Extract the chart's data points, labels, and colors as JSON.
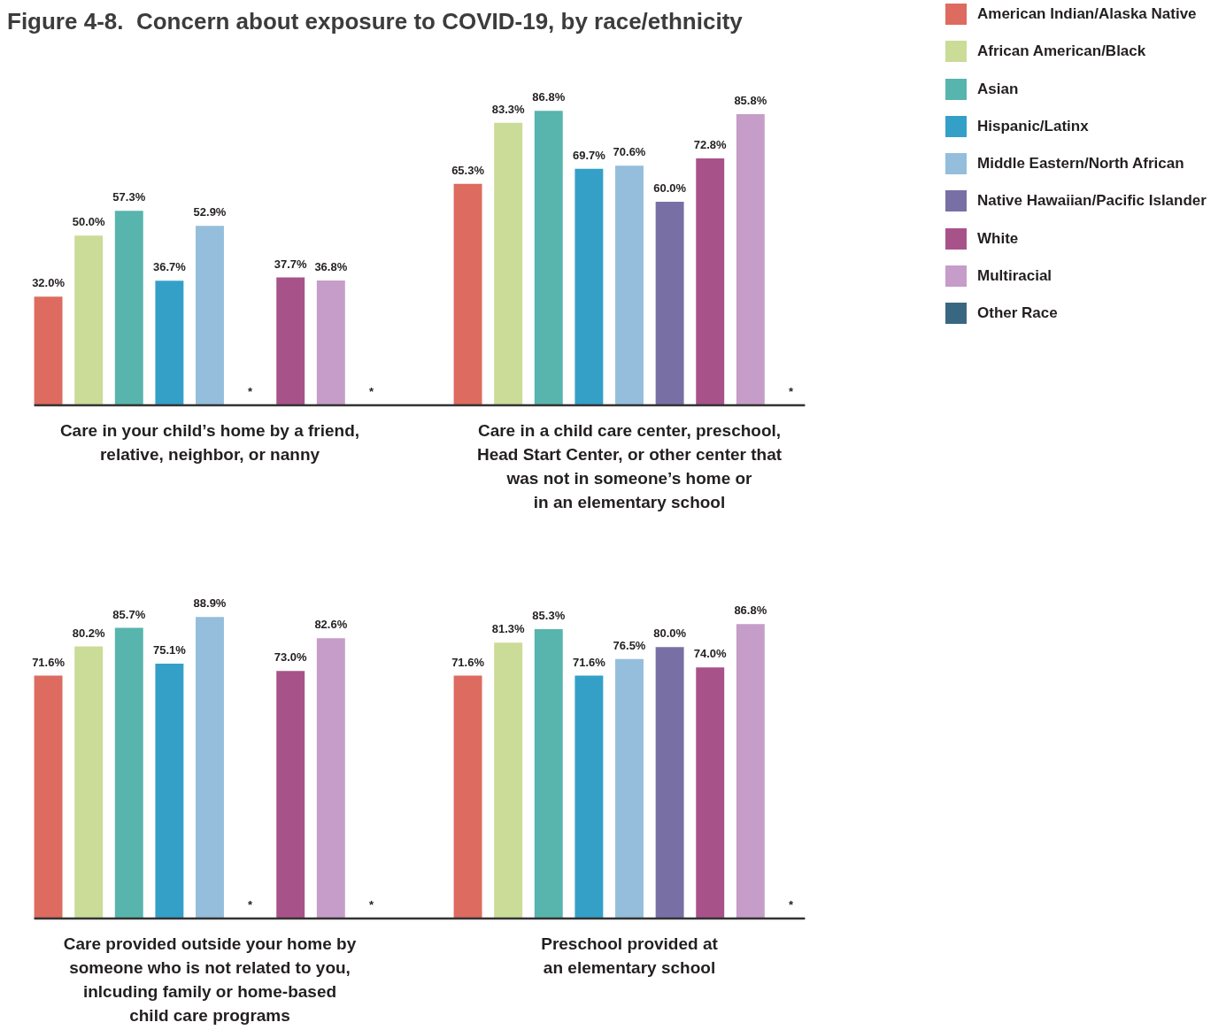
{
  "chart_data": [
    {
      "type": "bar",
      "title": "Figure 4-8.  Concern about exposure to COVID-19, by race/ethnicity",
      "legend": "top right",
      "categories": [
        "Care in your child’s home by a friend,\nrelative, neighbor, or nanny",
        "Care in a child care center, preschool,\nHead Start Center, or other center that\nwas not in someone’s home or\nin an elementary school"
      ],
      "series": [
        {
          "name": "American Indian/Alaska Native",
          "color": "#dd6b5f",
          "values": [
            32.0,
            65.3
          ],
          "value_labels": [
            "32.0%",
            "65.3%"
          ]
        },
        {
          "name": "African American/Black",
          "color": "#cbdb98",
          "values": [
            50.0,
            83.3
          ],
          "value_labels": [
            "50.0%",
            "83.3%"
          ]
        },
        {
          "name": "Asian",
          "color": "#57b5ad",
          "values": [
            57.3,
            86.8
          ],
          "value_labels": [
            "57.3%",
            "86.8%"
          ]
        },
        {
          "name": "Hispanic/Latinx",
          "color": "#34a0c8",
          "values": [
            36.7,
            69.7
          ],
          "value_labels": [
            "36.7%",
            "69.7%"
          ]
        },
        {
          "name": "Middle Eastern/North African",
          "color": "#94bedc",
          "values": [
            52.9,
            70.6
          ],
          "value_labels": [
            "52.9%",
            "70.6%"
          ]
        },
        {
          "name": "Native Hawaiian/Pacific Islander",
          "color": "#7870a5",
          "values": [
            null,
            60.0
          ],
          "value_labels": [
            "*",
            "60.0%"
          ]
        },
        {
          "name": "White",
          "color": "#a8528a",
          "values": [
            37.7,
            72.8
          ],
          "value_labels": [
            "37.7%",
            "72.8%"
          ]
        },
        {
          "name": "Multiracial",
          "color": "#c69cc8",
          "values": [
            36.8,
            85.8
          ],
          "value_labels": [
            "36.8%",
            "85.8%"
          ]
        },
        {
          "name": "Other Race",
          "color": "#396782",
          "values": [
            null,
            null
          ],
          "value_labels": [
            "*",
            "*"
          ]
        }
      ]
    },
    {
      "type": "bar",
      "categories": [
        "Care provided outside your home by\nsomeone who is not related to you,\ninlcuding family or home-based\nchild care programs",
        "Preschool provided at\nan elementary school"
      ],
      "series": [
        {
          "color": "#dd6b5f",
          "values": [
            71.6,
            71.6
          ],
          "value_labels": [
            "71.6%",
            "71.6%"
          ]
        },
        {
          "color": "#cbdb98",
          "values": [
            80.2,
            81.3
          ],
          "value_labels": [
            "80.2%",
            "81.3%"
          ]
        },
        {
          "color": "#57b5ad",
          "values": [
            85.7,
            85.3
          ],
          "value_labels": [
            "85.7%",
            "85.3%"
          ]
        },
        {
          "color": "#34a0c8",
          "values": [
            75.1,
            71.6
          ],
          "value_labels": [
            "75.1%",
            "71.6%"
          ]
        },
        {
          "color": "#94bedc",
          "values": [
            88.9,
            76.5
          ],
          "value_labels": [
            "88.9%",
            "76.5%"
          ]
        },
        {
          "color": "#7870a5",
          "values": [
            null,
            80.0
          ],
          "value_labels": [
            "*",
            "80.0%"
          ]
        },
        {
          "color": "#a8528a",
          "values": [
            73.0,
            74.0
          ],
          "value_labels": [
            "73.0%",
            "74.0%"
          ]
        },
        {
          "color": "#c69cc8",
          "values": [
            82.6,
            86.8
          ],
          "value_labels": [
            "82.6%",
            "86.8%"
          ]
        },
        {
          "color": "#396782",
          "values": [
            null,
            null
          ],
          "value_labels": [
            "*",
            "*"
          ]
        }
      ]
    }
  ]
}
